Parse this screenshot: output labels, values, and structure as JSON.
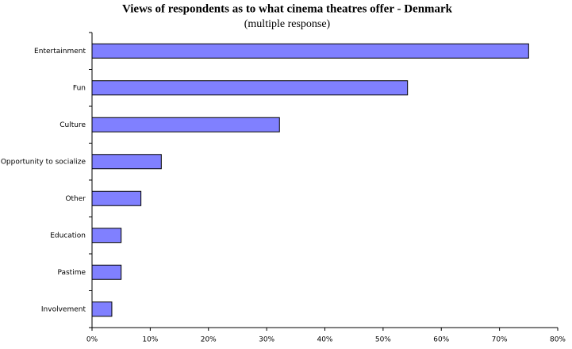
{
  "chart_data": {
    "type": "barh",
    "title": "Views of respondents as to what cinema theatres offer - Denmark",
    "subtitle": "(multiple response)",
    "categories": [
      "Entertainment",
      "Fun",
      "Culture",
      "Opportunity to socialize",
      "Other",
      "Education",
      "Pastime",
      "Involvement"
    ],
    "values": [
      75,
      54.2,
      32.2,
      11.9,
      8.4,
      5.0,
      5.0,
      3.4
    ],
    "color": "#8080ff",
    "xlim": [
      0,
      80
    ],
    "xticks": [
      {
        "value": 0,
        "label": "0%"
      },
      {
        "value": 10,
        "label": "10%"
      },
      {
        "value": 20,
        "label": "20%"
      },
      {
        "value": 30,
        "label": "30%"
      },
      {
        "value": 40,
        "label": "40%"
      },
      {
        "value": 50,
        "label": "50%"
      },
      {
        "value": 60,
        "label": "60%"
      },
      {
        "value": 70,
        "label": "70%"
      },
      {
        "value": 80,
        "label": "80%"
      }
    ],
    "grid": false
  }
}
